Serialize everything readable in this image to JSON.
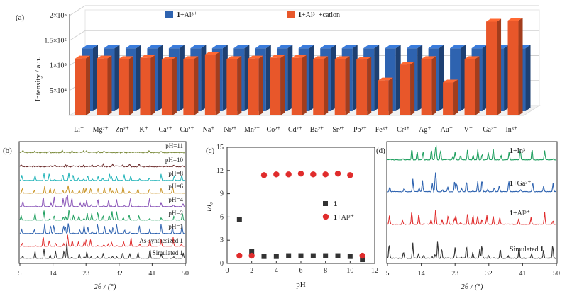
{
  "chart_data": [
    {
      "panel": "(a)",
      "type": "bar",
      "title": "",
      "xlabel": "",
      "ylabel": "Intensity / a.u.",
      "ylim": [
        0,
        200000
      ],
      "yticks": [
        "5×10⁴",
        "1×10⁵",
        "1.5×10⁵",
        "2×10⁵"
      ],
      "ytick_values": [
        50000,
        100000,
        150000,
        200000
      ],
      "categories": [
        "Li⁺",
        "Mg²⁺",
        "Zn²⁺",
        "K⁺",
        "Ca²⁺",
        "Cu²⁺",
        "Na⁺",
        "Ni²⁺",
        "Mn²⁺",
        "Co²⁺",
        "Cd²⁺",
        "Ba²⁺",
        "Sr²⁺",
        "Pb²⁺",
        "Fe³⁺",
        "Cr³⁺",
        "Ag⁺",
        "Au⁺",
        "V⁺",
        "Ga³⁺",
        "In³⁺"
      ],
      "series": [
        {
          "name": "1+Al³⁺",
          "name_bold": "1",
          "name_rest": "+Al³⁺",
          "color": "#2e63b0",
          "values": [
            126000,
            126000,
            126000,
            126000,
            126000,
            126000,
            126000,
            126000,
            126000,
            126000,
            126000,
            126000,
            126000,
            126000,
            126000,
            126000,
            126000,
            126000,
            126000,
            126000,
            126000
          ]
        },
        {
          "name": "1+Al³⁺+cation",
          "name_bold": "1",
          "name_rest": "+Al³⁺+cation",
          "color": "#e8572a",
          "values": [
            114000,
            114000,
            113000,
            115000,
            112000,
            113000,
            122000,
            113000,
            114000,
            115000,
            115000,
            113000,
            113000,
            112000,
            70000,
            102000,
            113000,
            66000,
            113000,
            188000,
            190000
          ]
        }
      ],
      "legend": "top"
    },
    {
      "panel": "(b)",
      "type": "line",
      "xlabel": "2θ / (°)",
      "ylabel": "",
      "xlim": [
        5,
        50
      ],
      "xticks": [
        5,
        14,
        23,
        32,
        41,
        50
      ],
      "series": [
        {
          "name": "pH=11",
          "color": "#7a8a3a"
        },
        {
          "name": "pH=10",
          "color": "#6b2a2a"
        },
        {
          "name": "pH=8",
          "color": "#1fb3b8"
        },
        {
          "name": "pH=6",
          "color": "#c99426"
        },
        {
          "name": "pH=4",
          "color": "#8a55b8"
        },
        {
          "name": "pH=2",
          "color": "#20a060"
        },
        {
          "name": "pH=1",
          "color": "#2e63b0"
        },
        {
          "name": "As-synthesized",
          "name_rest": "As-synthesized ",
          "name_bold": "1",
          "color": "#e02c2c"
        },
        {
          "name": "Simulated",
          "name_rest": "Simulated ",
          "name_bold": "1",
          "color": "#333333"
        }
      ]
    },
    {
      "panel": "(c)",
      "type": "scatter",
      "xlabel": "pH",
      "ylabel": "I/I₀",
      "xlim": [
        0,
        12
      ],
      "ylim": [
        0,
        15
      ],
      "xticks": [
        0,
        2,
        4,
        6,
        8,
        10,
        12
      ],
      "yticks": [
        0,
        3,
        6,
        9,
        12,
        15
      ],
      "x": [
        1,
        2,
        3,
        4,
        5,
        6,
        7,
        8,
        9,
        10,
        11
      ],
      "series": [
        {
          "name": "1",
          "color": "#333333",
          "marker": "square",
          "values": [
            5.7,
            1.6,
            0.9,
            0.9,
            1.0,
            1.0,
            1.0,
            1.0,
            1.0,
            0.9,
            0.5
          ]
        },
        {
          "name": "1+Al³⁺",
          "name_bold": "1",
          "name_rest": "+Al³⁺",
          "color": "#e02c2c",
          "marker": "circle",
          "values": [
            1.0,
            1.0,
            11.4,
            11.5,
            11.5,
            11.6,
            11.5,
            11.5,
            11.6,
            11.4,
            1.0
          ]
        }
      ],
      "legend": "right"
    },
    {
      "panel": "(d)",
      "type": "line",
      "xlabel": "2θ / (°)",
      "ylabel": "",
      "xlim": [
        5,
        50
      ],
      "xticks": [
        5,
        14,
        23,
        32,
        41,
        50
      ],
      "series": [
        {
          "name": "1+In³⁺",
          "name_bold": "1",
          "name_rest": "+In³⁺",
          "color": "#20a060"
        },
        {
          "name": "1+Ga³⁺",
          "name_bold": "1",
          "name_rest": "+Ga³⁺",
          "color": "#2e63b0"
        },
        {
          "name": "1+Al³⁺",
          "name_bold": "1",
          "name_rest": "+Al³⁺",
          "color": "#e02c2c"
        },
        {
          "name": "Simulated",
          "name_rest": "Simulated ",
          "name_bold": "1",
          "color": "#333333"
        }
      ]
    }
  ],
  "panel_labels": [
    "(a)",
    "(b)",
    "(c)",
    "(d)"
  ]
}
